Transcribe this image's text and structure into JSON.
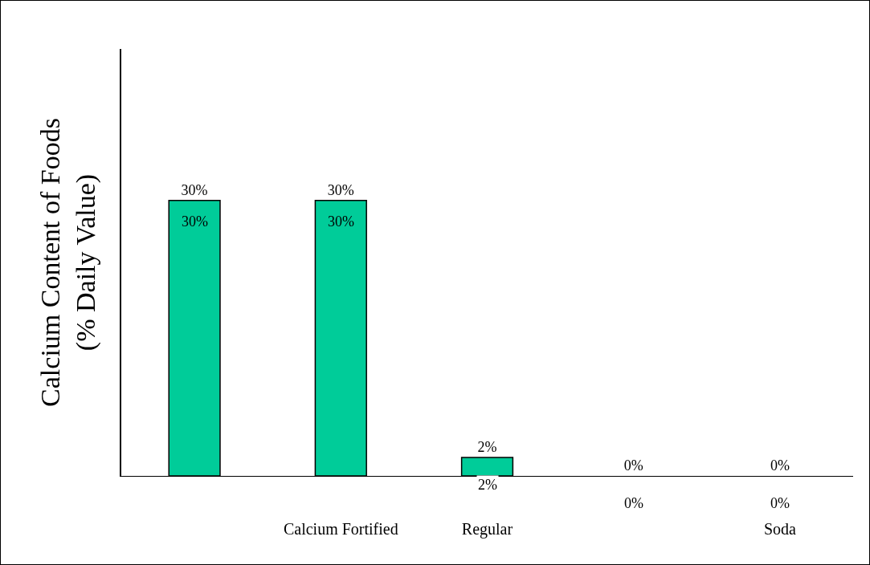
{
  "chart_data": {
    "type": "bar",
    "ylabel": "Calcium Content of Foods\n(% Daily Value)",
    "categories": [
      null,
      "Calcium Fortified",
      "Regular",
      null,
      "Soda"
    ],
    "values": [
      30,
      30,
      2,
      0,
      0
    ],
    "value_labels": [
      "30%",
      "30%",
      "2%",
      "0%",
      "0%"
    ],
    "color": "#00cc99",
    "grid": false,
    "legend": false
  }
}
